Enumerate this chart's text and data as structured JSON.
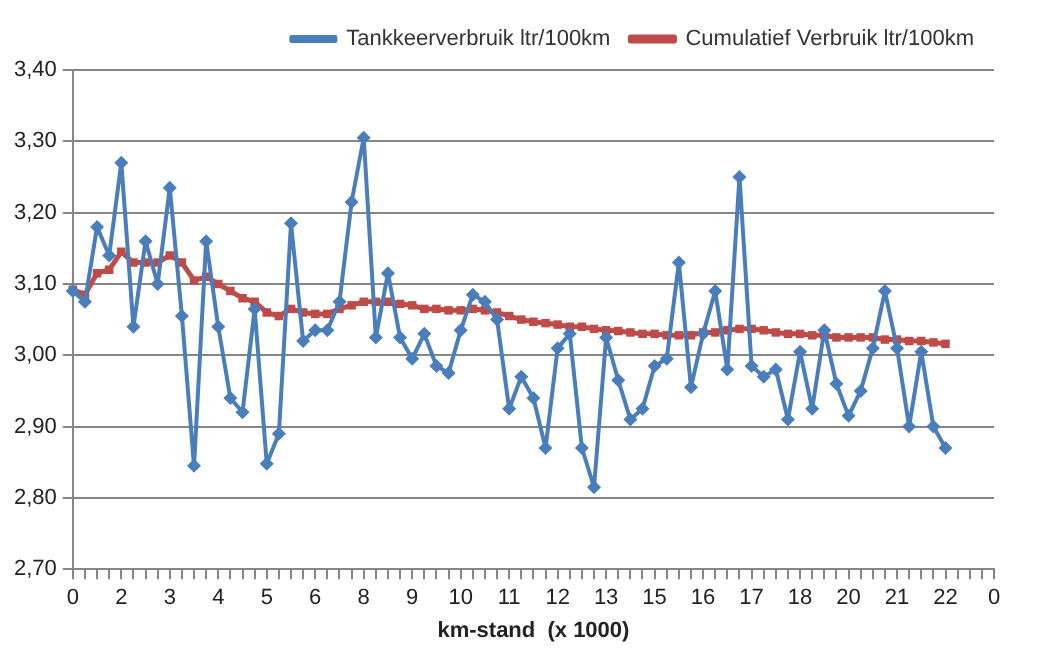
{
  "chart_data": {
    "type": "line",
    "xlabel": "km-stand  (x 1000)",
    "categories": [
      "0",
      null,
      null,
      null,
      "2",
      null,
      null,
      null,
      "3",
      null,
      null,
      null,
      "4",
      null,
      null,
      null,
      "5",
      null,
      null,
      null,
      "6",
      null,
      null,
      null,
      "8",
      null,
      null,
      null,
      "9",
      null,
      null,
      null,
      "10",
      null,
      null,
      null,
      "11",
      null,
      null,
      null,
      "12",
      null,
      null,
      null,
      "13",
      null,
      null,
      null,
      "15",
      null,
      null,
      null,
      "16",
      null,
      null,
      null,
      "17",
      null,
      null,
      null,
      "18",
      null,
      null,
      null,
      "20",
      null,
      null,
      null,
      "21",
      null,
      null,
      null,
      "22",
      null,
      null,
      null,
      "0"
    ],
    "series": [
      {
        "name": "Tankkeerverbruik ltr/100km",
        "color": "#4a7ebb",
        "marker": "diamond",
        "values": [
          3.09,
          3.075,
          3.18,
          3.14,
          3.27,
          3.04,
          3.16,
          3.1,
          3.235,
          3.055,
          2.845,
          3.16,
          3.04,
          2.94,
          2.92,
          3.065,
          2.848,
          2.89,
          3.185,
          3.02,
          3.035,
          3.035,
          3.075,
          3.215,
          3.305,
          3.025,
          3.115,
          3.025,
          2.995,
          3.03,
          2.985,
          2.975,
          3.035,
          3.085,
          3.075,
          3.05,
          2.925,
          2.97,
          2.94,
          2.87,
          3.01,
          3.03,
          2.87,
          2.815,
          3.025,
          2.965,
          2.91,
          2.925,
          2.985,
          2.995,
          3.13,
          2.955,
          3.03,
          3.09,
          2.98,
          3.25,
          2.985,
          2.97,
          2.98,
          2.91,
          3.005,
          2.925,
          3.035,
          2.96,
          2.915,
          2.95,
          3.01,
          3.09,
          3.01,
          2.9,
          3.005,
          2.9,
          2.87,
          null,
          null,
          null,
          null
        ]
      },
      {
        "name": "Cumulatief Verbruik ltr/100km",
        "color": "#be4b48",
        "marker": "square",
        "values": [
          3.092,
          3.085,
          3.115,
          3.12,
          3.145,
          3.13,
          3.13,
          3.13,
          3.14,
          3.13,
          3.105,
          3.11,
          3.1,
          3.09,
          3.08,
          3.075,
          3.06,
          3.055,
          3.065,
          3.06,
          3.058,
          3.058,
          3.065,
          3.07,
          3.075,
          3.075,
          3.075,
          3.072,
          3.07,
          3.065,
          3.065,
          3.063,
          3.063,
          3.065,
          3.063,
          3.06,
          3.055,
          3.05,
          3.047,
          3.045,
          3.043,
          3.04,
          3.04,
          3.037,
          3.035,
          3.034,
          3.032,
          3.03,
          3.03,
          3.028,
          3.028,
          3.028,
          3.032,
          3.032,
          3.035,
          3.037,
          3.037,
          3.035,
          3.032,
          3.03,
          3.03,
          3.028,
          3.028,
          3.025,
          3.025,
          3.025,
          3.025,
          3.022,
          3.022,
          3.02,
          3.02,
          3.018,
          3.016,
          null,
          null,
          null,
          null
        ]
      }
    ],
    "ylim": [
      2.7,
      3.4
    ],
    "yticks": [
      {
        "value": 2.7,
        "label": "2,70"
      },
      {
        "value": 2.8,
        "label": "2,80"
      },
      {
        "value": 2.9,
        "label": "2,90"
      },
      {
        "value": 3.0,
        "label": "3,00"
      },
      {
        "value": 3.1,
        "label": "3,10"
      },
      {
        "value": 3.2,
        "label": "3,20"
      },
      {
        "value": 3.3,
        "label": "3,30"
      },
      {
        "value": 3.4,
        "label": "3,40"
      }
    ],
    "grid": "y",
    "legend": "top right",
    "line_style": "solid"
  }
}
